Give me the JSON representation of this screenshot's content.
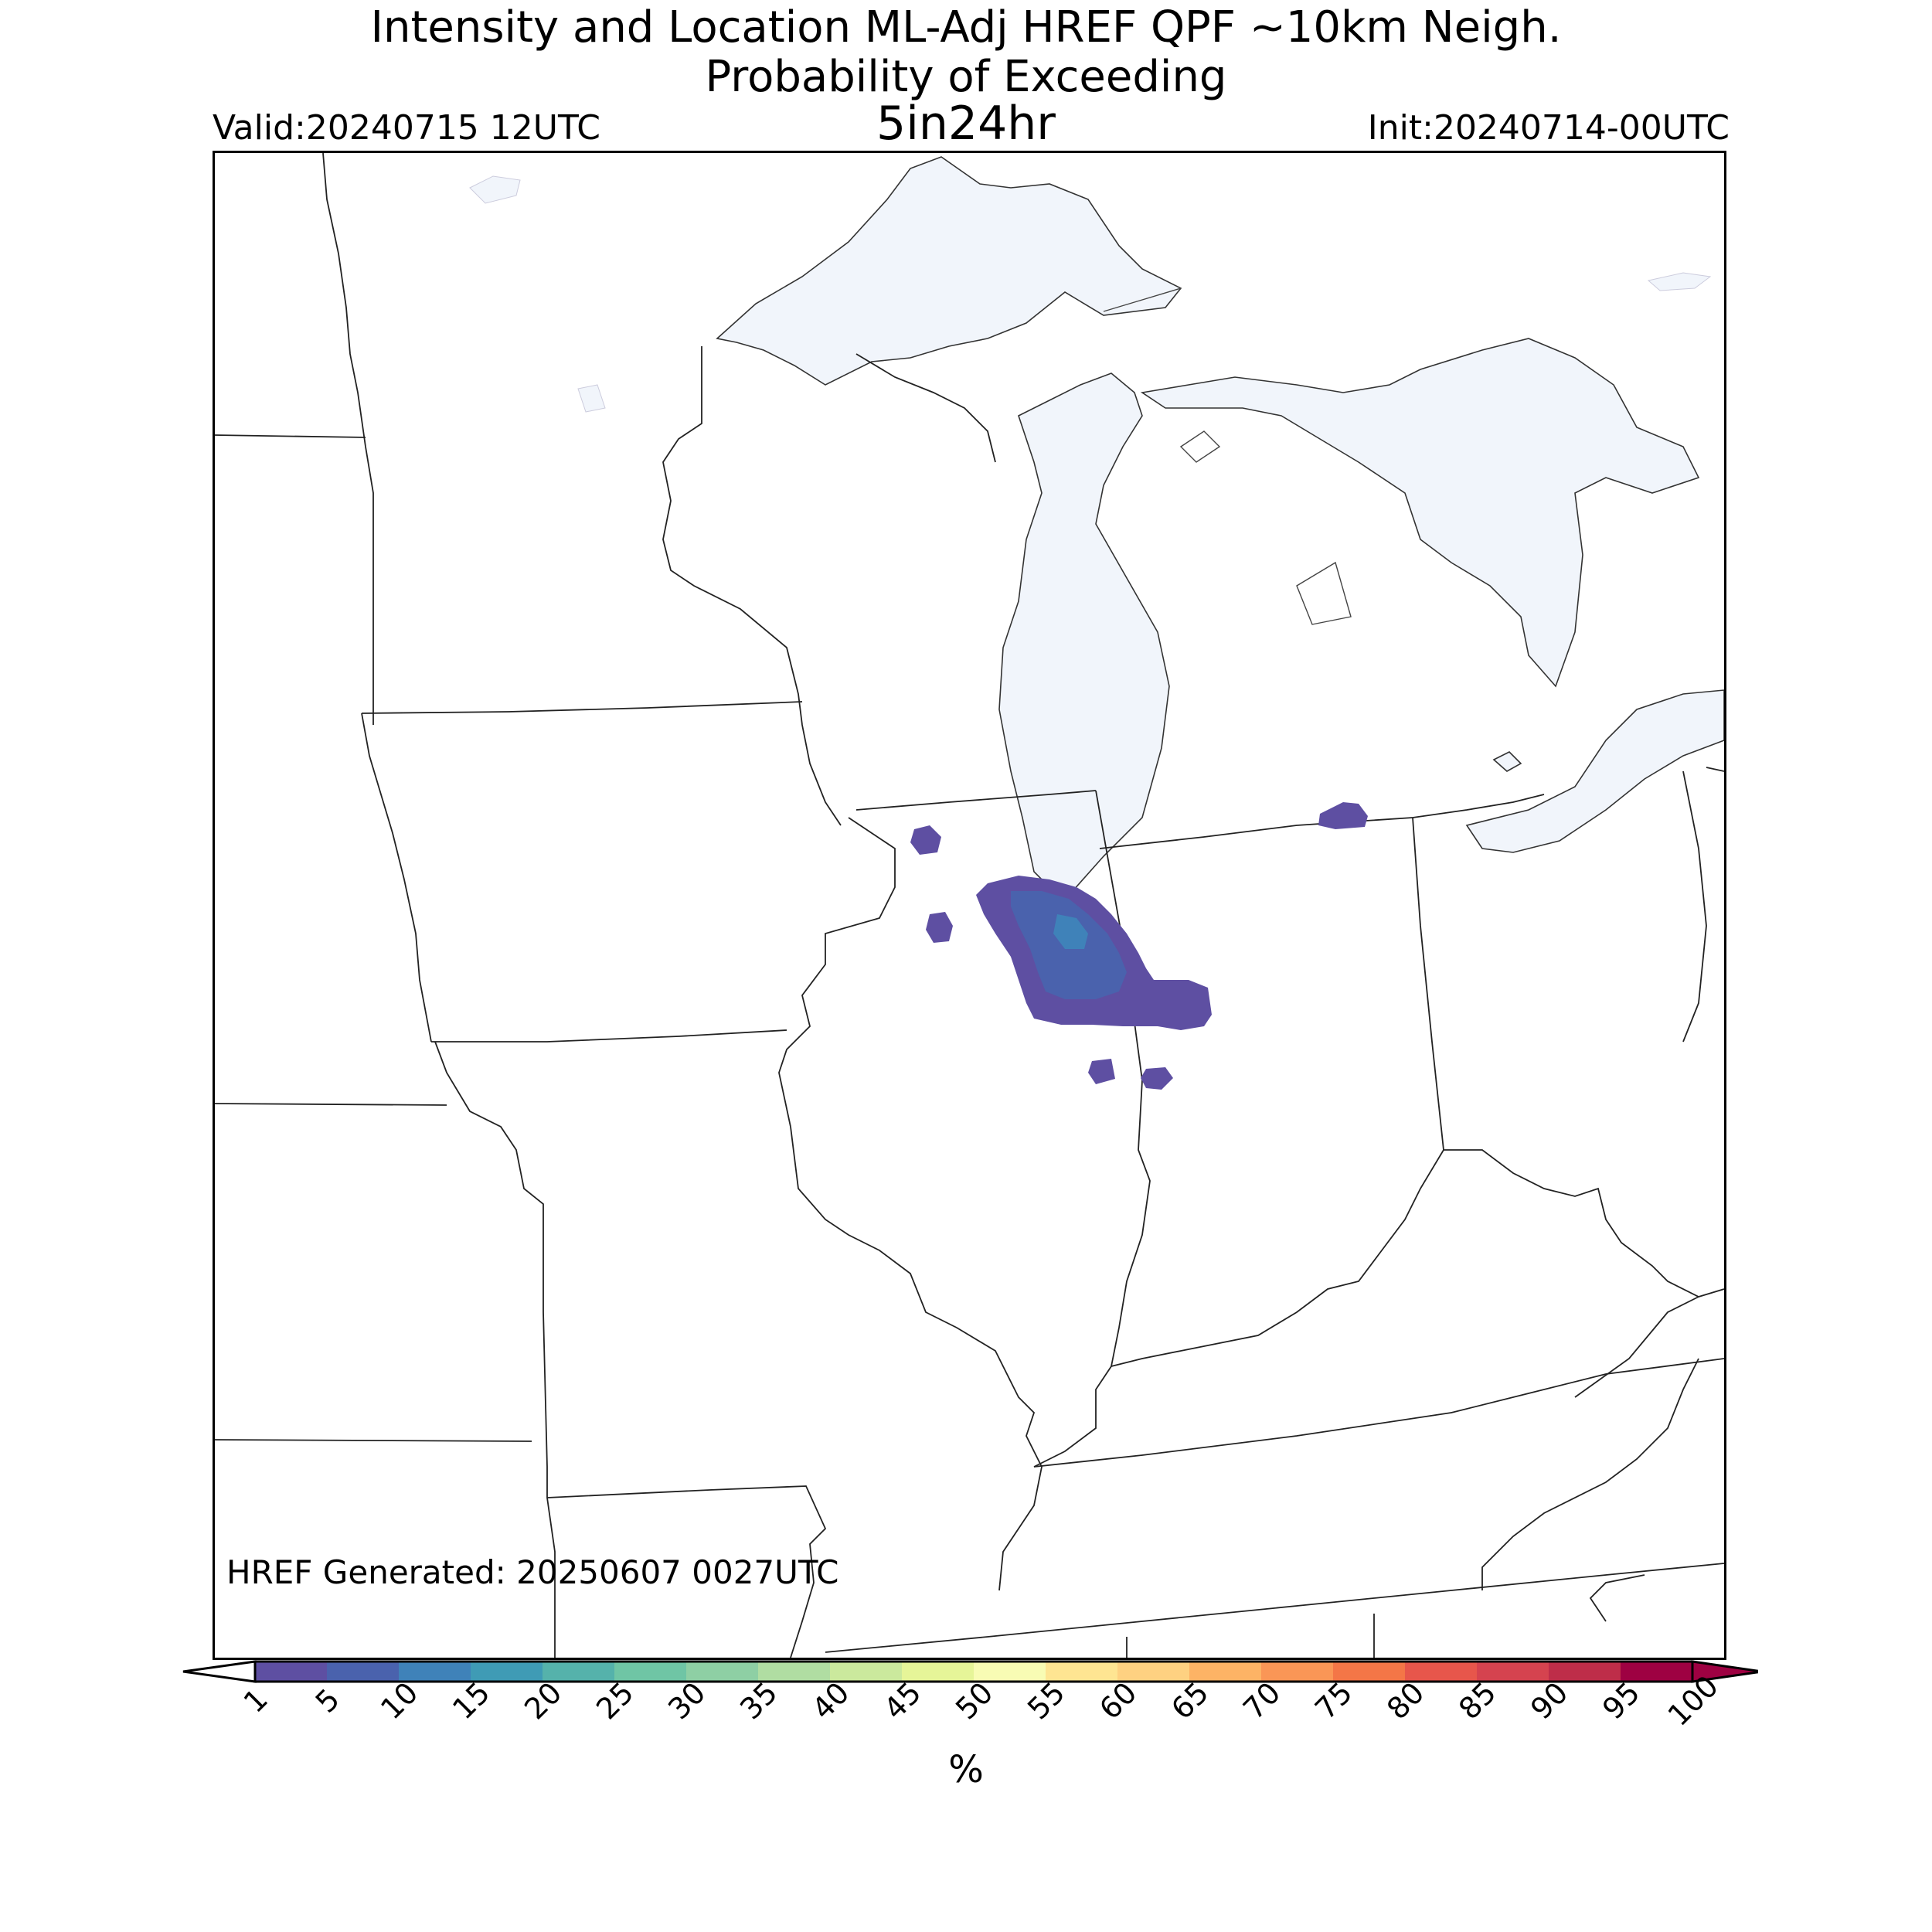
{
  "header": {
    "title_line1": "Intensity and Location ML-Adj HREF QPF ~10km Neigh.",
    "title_line2": "Probability of Exceeding",
    "threshold": "5in24hr",
    "valid": "Valid:20240715 12UTC",
    "init": "Init:20240714-00UTC"
  },
  "footer": {
    "generated": "HREF Generated: 20250607 0027UTC"
  },
  "colorbar": {
    "unit": "%",
    "levels": [
      "1",
      "5",
      "10",
      "15",
      "20",
      "25",
      "30",
      "35",
      "40",
      "45",
      "50",
      "55",
      "60",
      "65",
      "70",
      "75",
      "80",
      "85",
      "90",
      "95",
      "100"
    ],
    "colors": [
      "#5e4fa2",
      "#4a62ad",
      "#3f82b9",
      "#3f9bb5",
      "#55b2ab",
      "#6fc5a5",
      "#8ecfa4",
      "#b0dda2",
      "#cbe99d",
      "#e6f598",
      "#f8fcb4",
      "#fee592",
      "#fed181",
      "#fdb365",
      "#fa9656",
      "#f47647",
      "#e7564b",
      "#d5434f",
      "#be2d49",
      "#9e0142"
    ]
  },
  "map": {
    "region": "Upper Midwest / Great Lakes",
    "water_color": "#f1f5fb",
    "prob_colors": {
      "p1": "#5e4fa2",
      "p5": "#4a62ad",
      "p10": "#3f82b9",
      "p15": "#3f9bb5"
    }
  }
}
